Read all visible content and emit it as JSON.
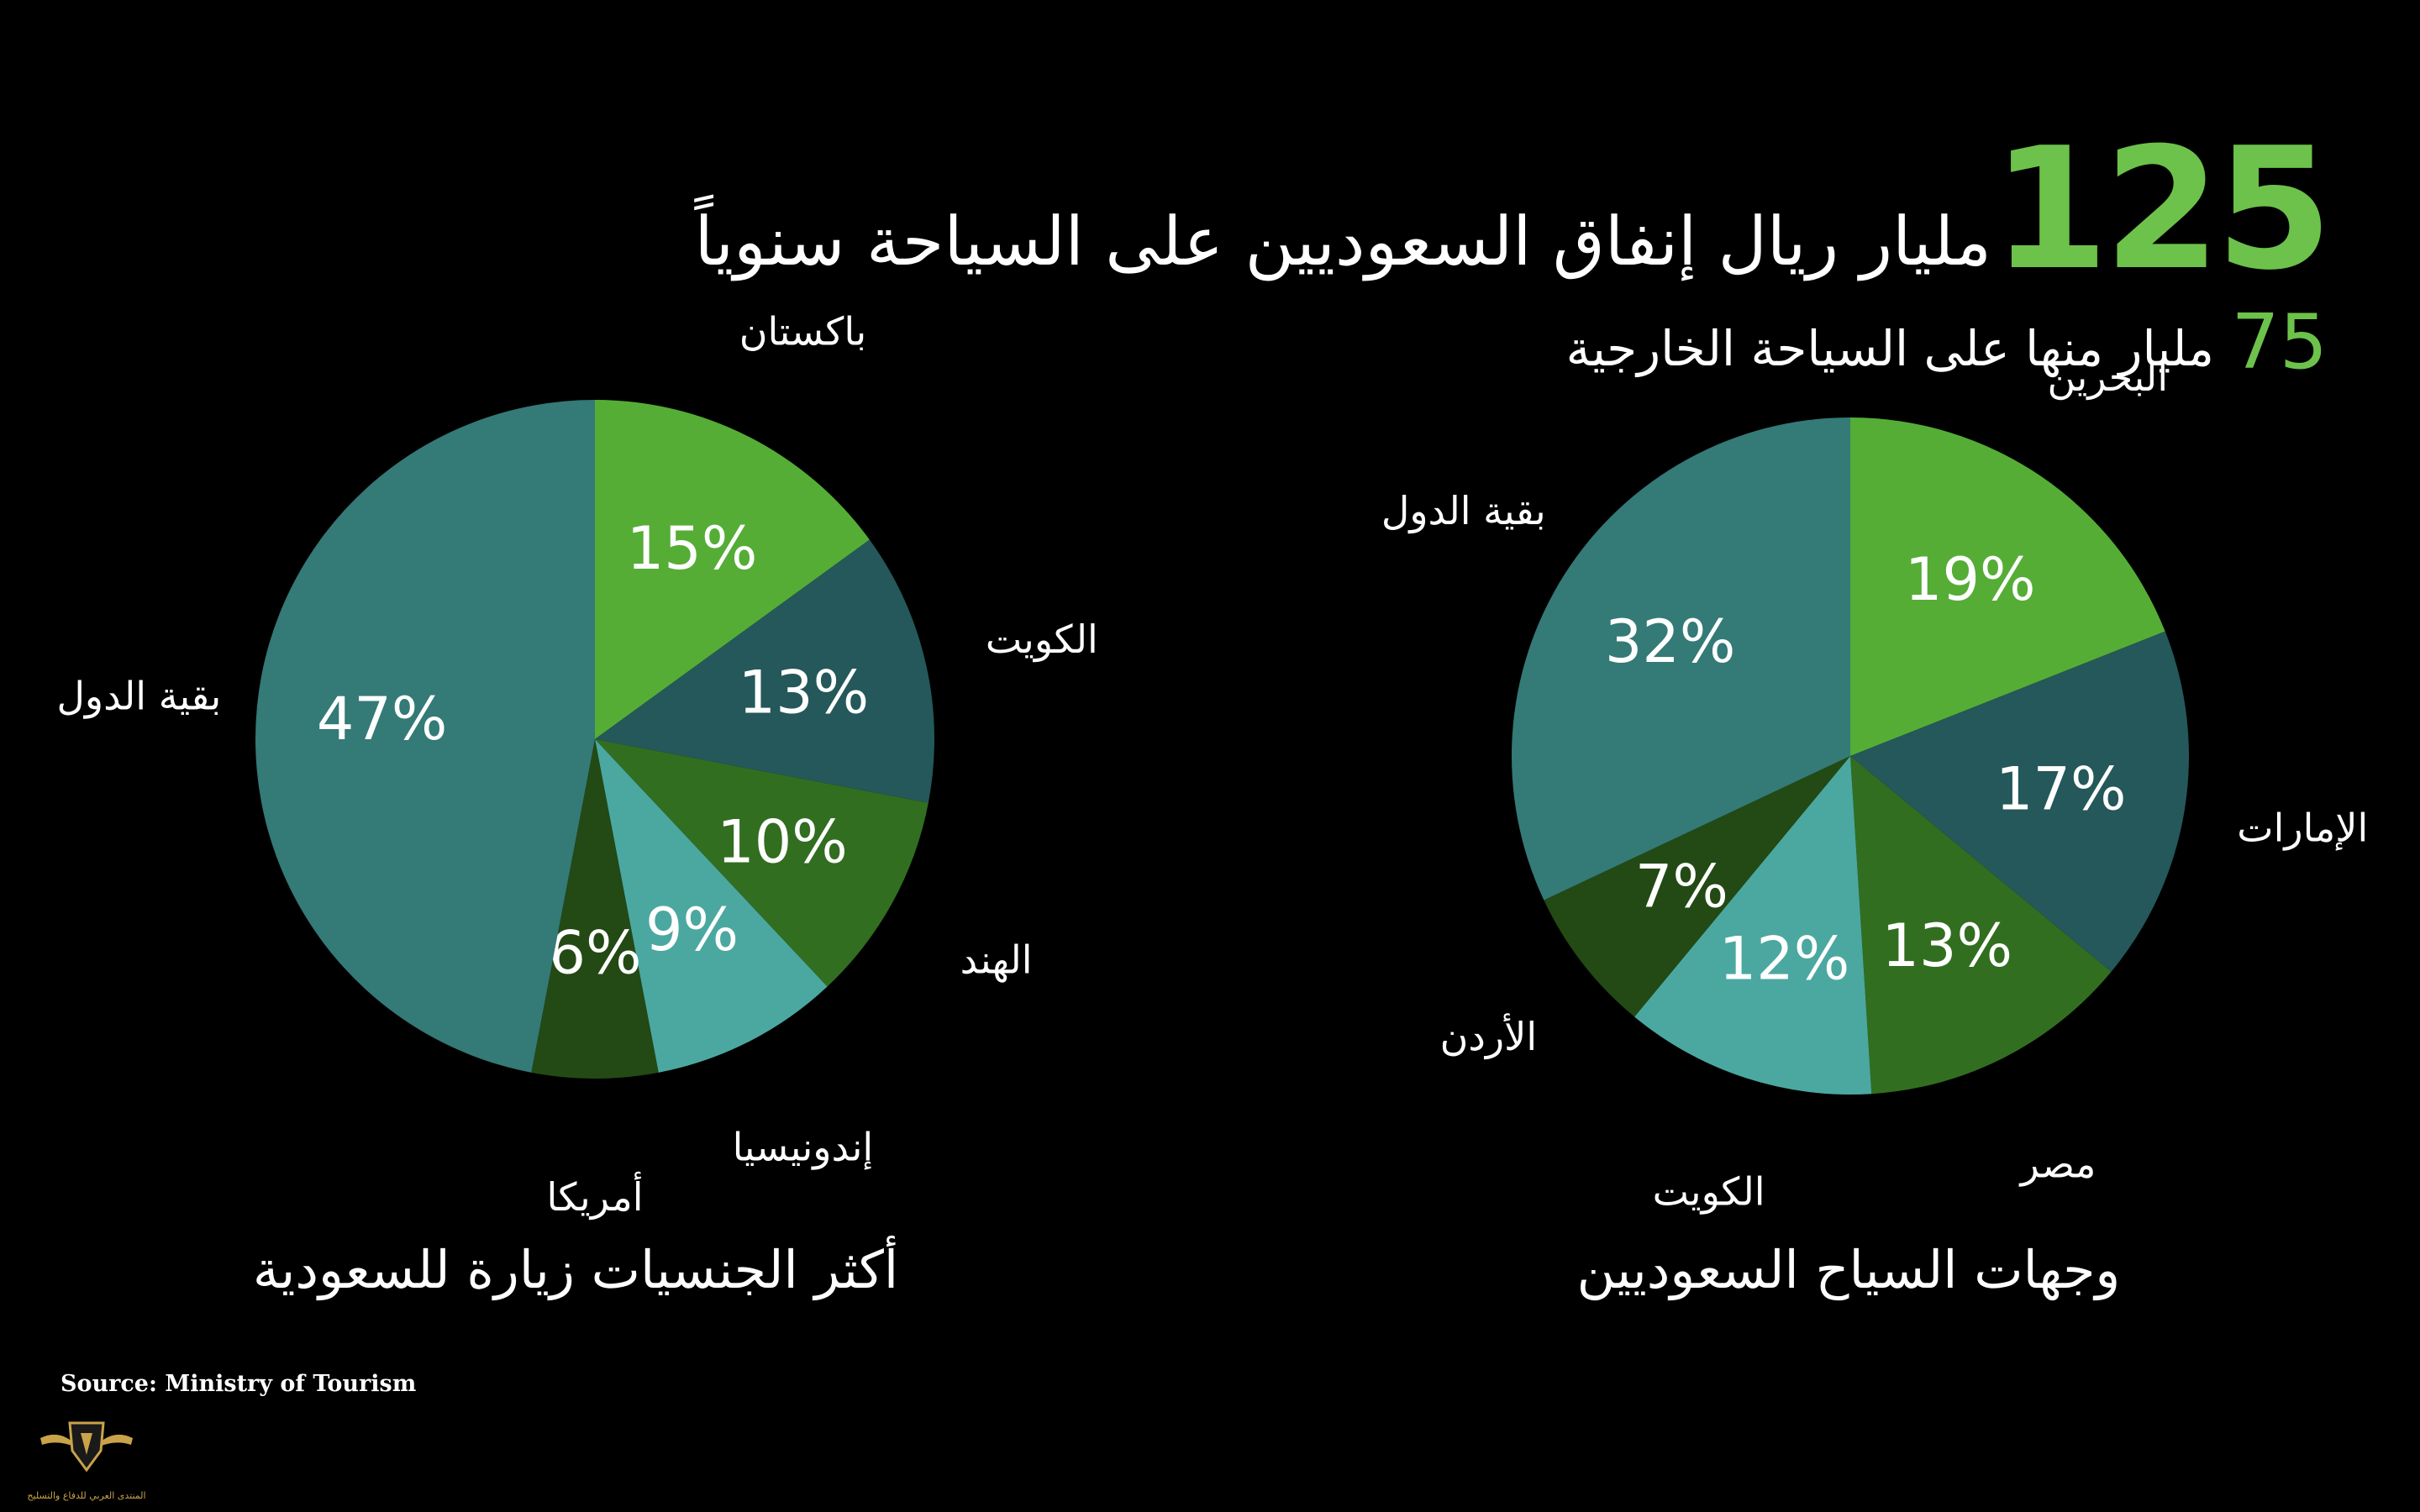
{
  "header": {
    "big_number": "125",
    "headline": "مليار ريال إنفاق السعوديين على السياحة سنوياً",
    "sub_number": "75",
    "subheadline": "مليار منها على السياحة الخارجية"
  },
  "source": "Source: Ministry of Tourism",
  "logo": {
    "caption": "المنتدى العربي للدفاع والتسليح"
  },
  "chart_data": [
    {
      "type": "pie",
      "title": "أكثر الجنسيات زيارة للسعودية",
      "categories": [
        "باكستان",
        "الكويت",
        "الهند",
        "إندونيسيا",
        "أمريكا",
        "بقية الدول"
      ],
      "values": [
        15,
        13,
        10,
        9,
        6,
        47
      ],
      "value_labels": [
        "15%",
        "13%",
        "10%",
        "9%",
        "6%",
        "47%"
      ],
      "colors": [
        "#55ad36",
        "#24585a",
        "#326e20",
        "#4ba8a0",
        "#234a14",
        "#347a77"
      ],
      "start": "12 o'clock",
      "direction": "clockwise"
    },
    {
      "type": "pie",
      "title": "وجهات السياح السعوديين",
      "categories": [
        "البحرين",
        "الإمارات",
        "مصر",
        "الكويت",
        "الأردن",
        "بقية الدول"
      ],
      "values": [
        19,
        17,
        13,
        12,
        7,
        32
      ],
      "value_labels": [
        "19%",
        "17%",
        "13%",
        "12%",
        "7%",
        "32%"
      ],
      "colors": [
        "#55ad36",
        "#24585a",
        "#326e20",
        "#4ba8a0",
        "#234a14",
        "#347a77"
      ],
      "start": "12 o'clock",
      "direction": "clockwise"
    }
  ]
}
